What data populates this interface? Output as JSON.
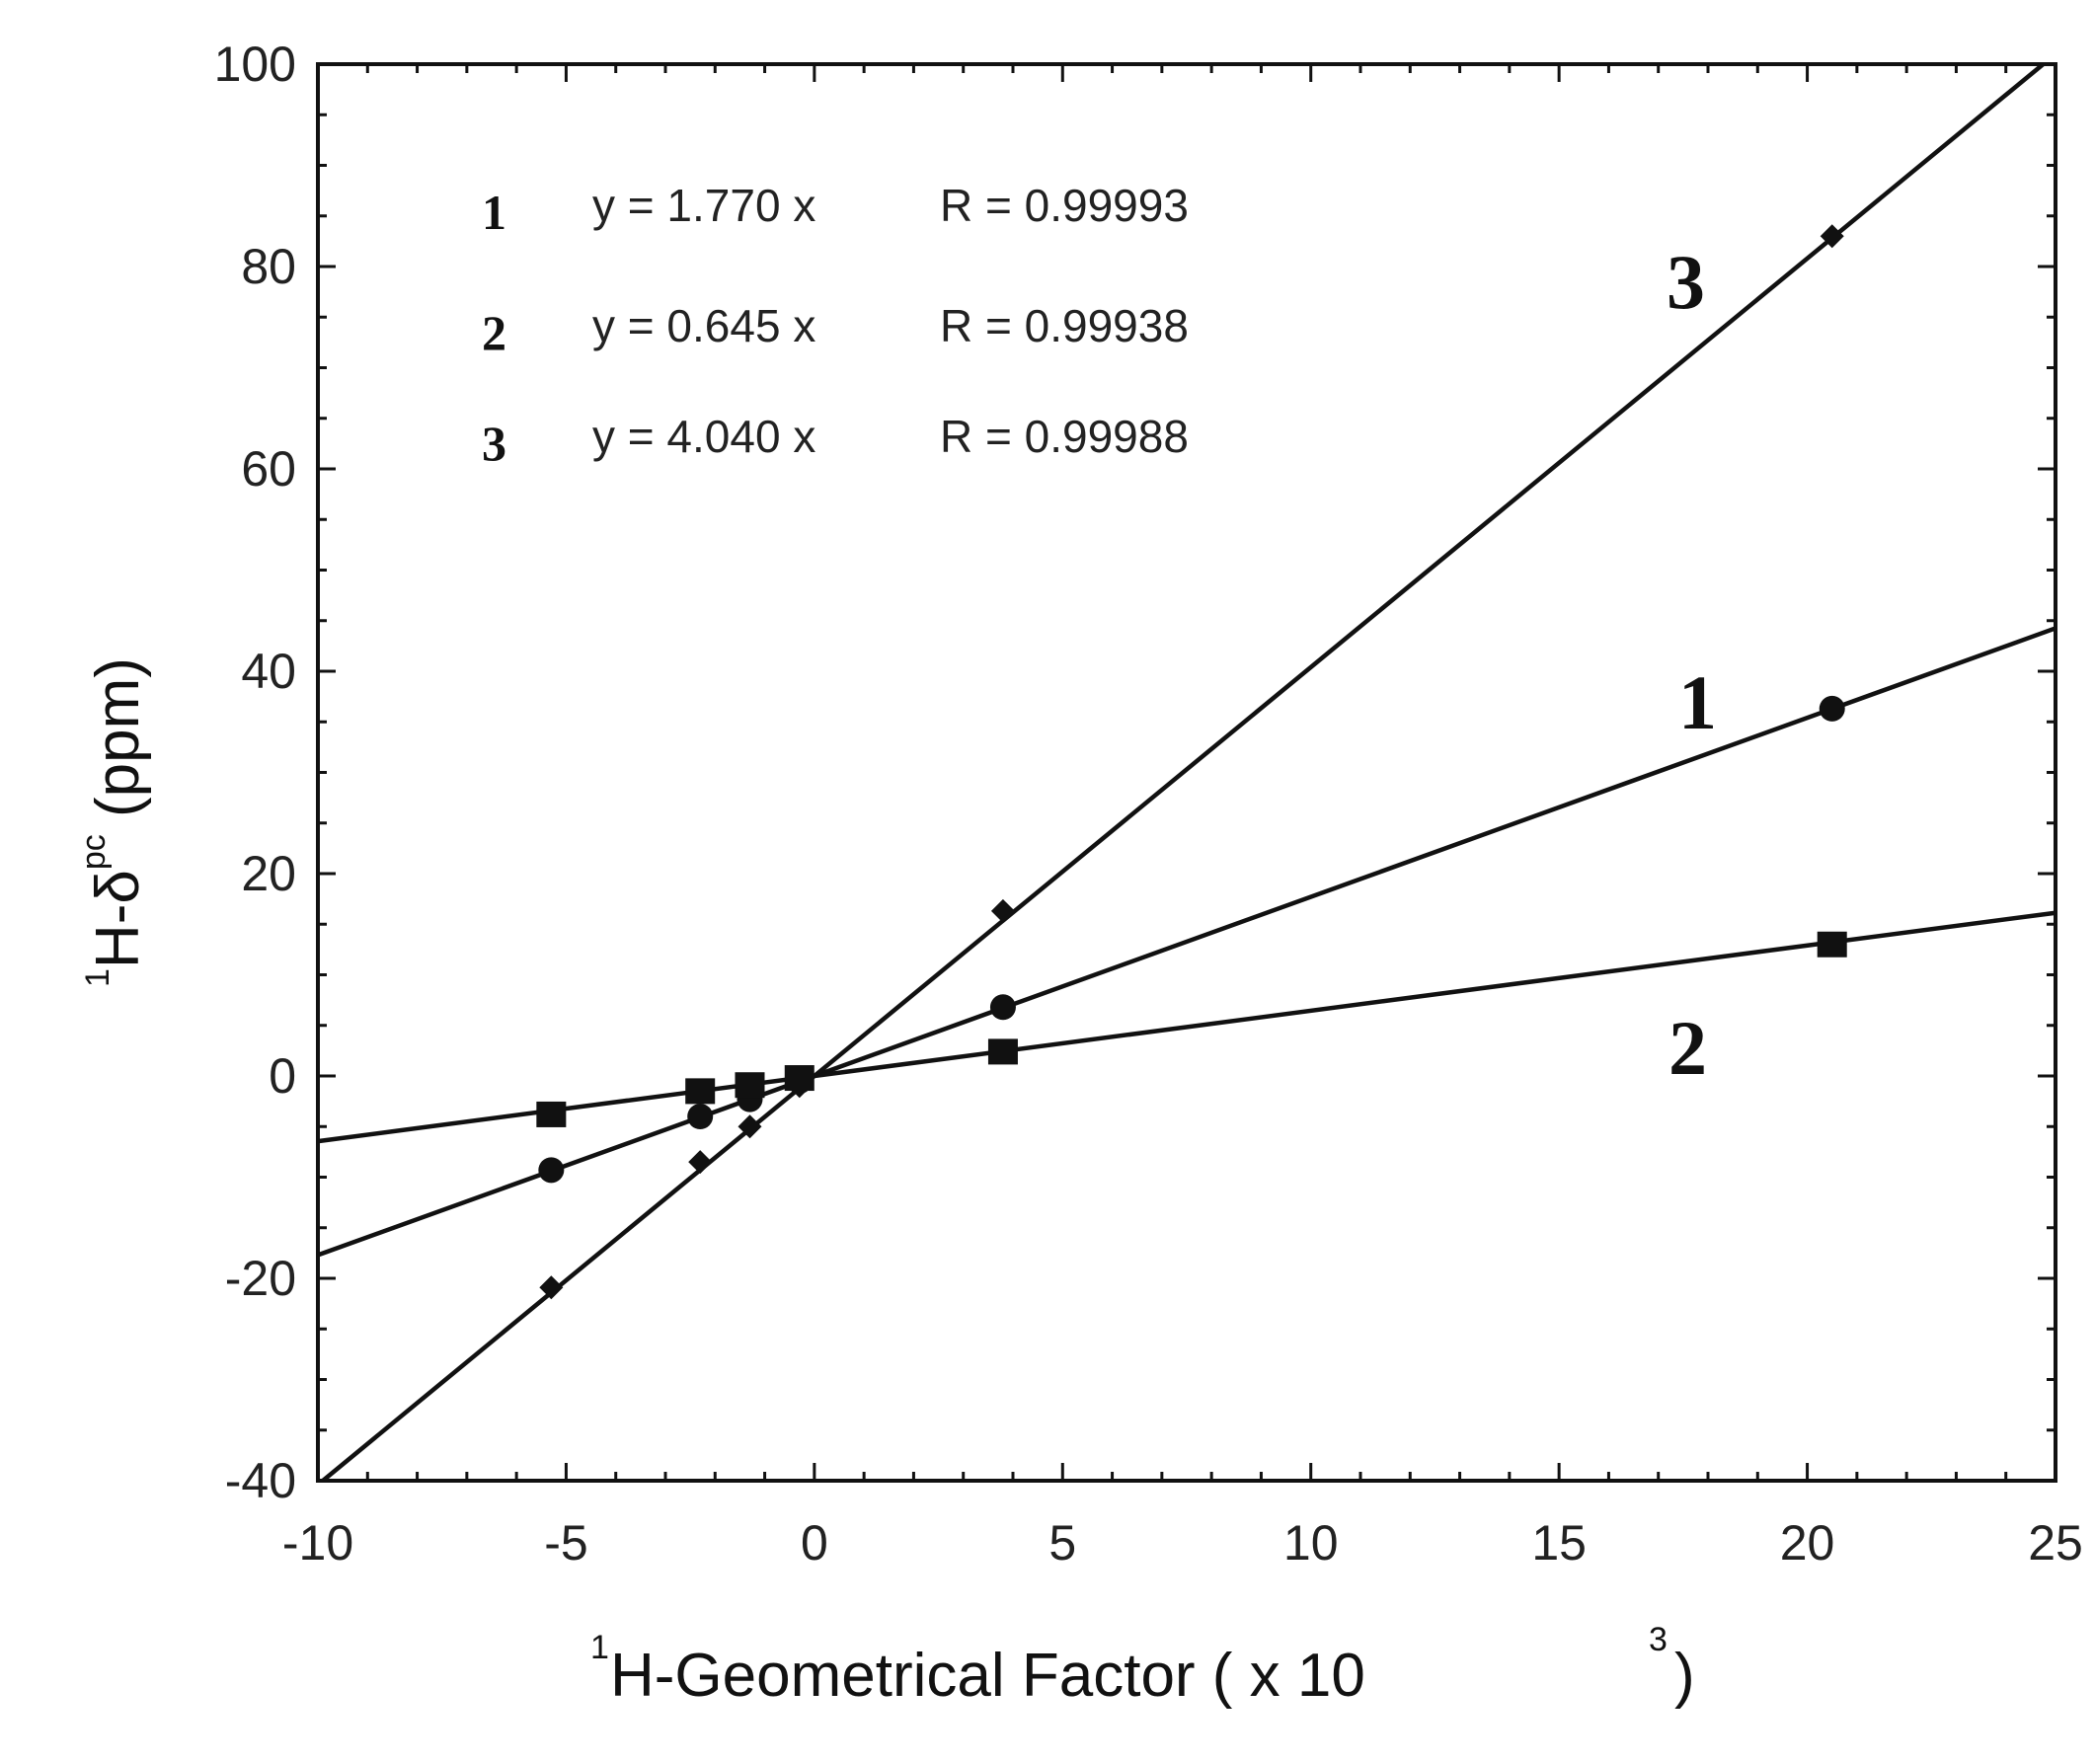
{
  "chart_data": {
    "type": "scatter",
    "xlim": [
      -10,
      25
    ],
    "ylim": [
      -40,
      100
    ],
    "x_ticks": [
      "-10",
      "-5",
      "0",
      "5",
      "10",
      "15",
      "20",
      "25"
    ],
    "y_ticks": [
      "-40",
      "-20",
      "0",
      "20",
      "40",
      "60",
      "80",
      "100"
    ],
    "xlabel": {
      "sup": "1",
      "main": "H-Geometrical Factor ( x 10",
      "exp": "3",
      "end": " )"
    },
    "ylabel": {
      "sup": "1",
      "main": "H-δ",
      "exp": "pc",
      "end": " (ppm)"
    },
    "grid": false,
    "series": [
      {
        "name": "1",
        "marker": "circle",
        "slope": 1.77,
        "x": [
          -5.3,
          -2.3,
          -1.3,
          -0.3,
          3.8,
          20.5
        ],
        "y": [
          -9.3,
          -4.0,
          -2.3,
          -0.5,
          6.8,
          36.3
        ],
        "equation": "y = 1.770 x",
        "r_text": "R = 0.99993"
      },
      {
        "name": "2",
        "marker": "square",
        "slope": 0.645,
        "x": [
          -5.3,
          -2.3,
          -1.3,
          -0.3,
          3.8,
          20.5
        ],
        "y": [
          -3.8,
          -1.5,
          -0.9,
          -0.2,
          2.4,
          13.0
        ],
        "equation": "y = 0.645 x",
        "r_text": "R = 0.99938"
      },
      {
        "name": "3",
        "marker": "diamond",
        "slope": 4.04,
        "x": [
          -5.3,
          -2.3,
          -1.3,
          -0.3,
          3.8,
          20.5
        ],
        "y": [
          -20.9,
          -8.5,
          -5.0,
          -1.0,
          16.3,
          83.0
        ],
        "equation": "y = 4.040 x",
        "r_text": "R = 0.99988"
      }
    ]
  }
}
